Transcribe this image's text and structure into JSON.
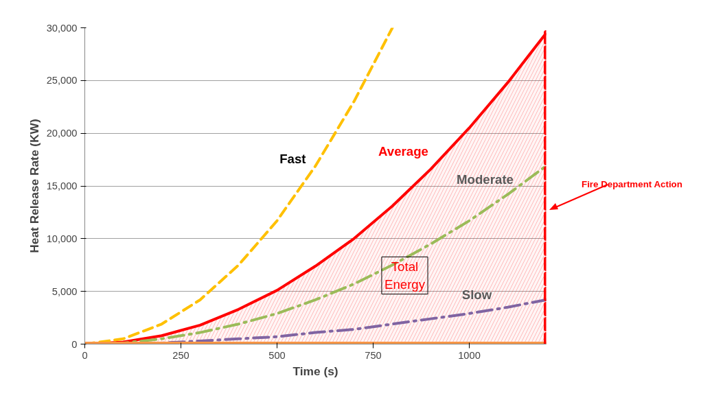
{
  "chart_data": {
    "type": "line",
    "xlabel": "Time (s)",
    "ylabel": "Heat Release Rate (KW)",
    "x": [
      0,
      100,
      200,
      300,
      400,
      500,
      600,
      700,
      800,
      900,
      1000,
      1100,
      1200
    ],
    "series": [
      {
        "type": "area",
        "color": "#ff0000",
        "values": [
          0,
          200,
          800,
          1800,
          3300,
          5100,
          7400,
          10000,
          13100,
          16600,
          20500,
          24800,
          29500
        ]
      },
      {
        "color": "#ffc000",
        "line_style": "dashed",
        "x": [
          0,
          100,
          200,
          300,
          400,
          500,
          600,
          700,
          800
        ],
        "values": [
          0,
          500,
          1900,
          4200,
          7500,
          11700,
          16900,
          23000,
          30000
        ]
      },
      {
        "color": "#9bbb59",
        "line_style": "dashdot",
        "values": [
          0,
          100,
          500,
          1100,
          1900,
          2900,
          4200,
          5700,
          7500,
          9500,
          11700,
          14200,
          16900
        ]
      },
      {
        "color": "#8064a2",
        "line_style": "dashdot",
        "values": [
          0,
          0,
          100,
          300,
          500,
          700,
          1100,
          1400,
          1900,
          2400,
          2900,
          3500,
          4200
        ]
      },
      {
        "color": "#f79646",
        "line_style": "solid",
        "x": [
          0,
          1200
        ],
        "values": [
          100,
          100
        ]
      }
    ],
    "annotations": [
      {
        "text": "Fast",
        "x": 600,
        "y": 16900
      },
      "Average",
      "Moderate",
      "Slow",
      "Total Energy"
    ],
    "ref_lines": [
      {
        "axis": "x",
        "value": 1200,
        "label": "Fire Department Action",
        "color": "#ff0000",
        "line_style": "dashed"
      }
    ],
    "xlim": [
      0,
      1200
    ],
    "ylim": [
      0,
      30000
    ],
    "xticks": [
      0,
      250,
      500,
      750,
      1000
    ],
    "yticks": [
      {
        "value": 0,
        "label": "0"
      },
      {
        "value": 5000,
        "label": "5,000"
      },
      {
        "value": 10000,
        "label": "10,000"
      },
      {
        "value": 15000,
        "label": "15,000"
      },
      {
        "value": 20000,
        "label": "20,000"
      },
      {
        "value": 25000,
        "label": "25,000"
      },
      {
        "value": 30000,
        "label": "30,000"
      }
    ],
    "grid": "y",
    "marker": "none"
  }
}
